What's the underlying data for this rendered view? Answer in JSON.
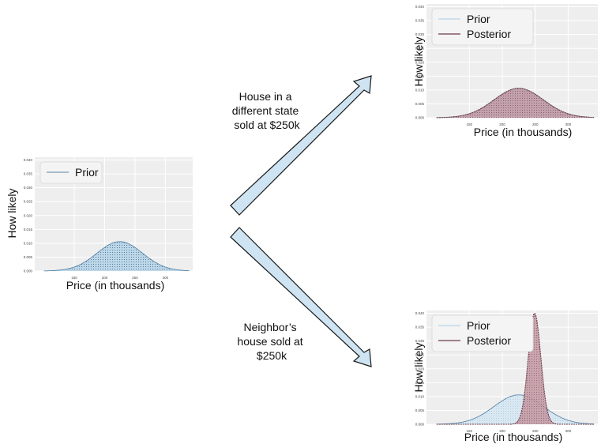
{
  "arrow_labels": {
    "top": [
      "House in a",
      "different state",
      "sold at $250k"
    ],
    "bottom": [
      "Neighbor’s",
      "house sold at",
      "$250k"
    ]
  },
  "colors": {
    "prior_fill": "#b9d6e8",
    "prior_line": "#5b86a8",
    "prior_dots": "#3b5f86",
    "posterior_fill": "#c49aa4",
    "posterior_line": "#6e3b47",
    "arrow_fill": "#cfe4f2",
    "arrow_stroke": "#1a1a1a",
    "plot_bg": "#eeeeee",
    "grid": "#ffffff"
  },
  "chart_data": [
    {
      "id": "prior-only",
      "type": "area",
      "xlabel": "Price (in thousands)",
      "ylabel": "How likely",
      "xticks": [
        150,
        200,
        250,
        300
      ],
      "yticks": [
        "0.000",
        "0.005",
        "0.010",
        "0.015",
        "0.020",
        "0.025",
        "0.030",
        "0.035",
        "0.040"
      ],
      "xlim": [
        85,
        345
      ],
      "ylim": [
        0,
        0.041
      ],
      "legend": {
        "placement": "top-left",
        "entries": [
          "Prior"
        ]
      },
      "series": [
        {
          "name": "Prior",
          "distribution": "normal",
          "mean": 225,
          "sd": 37.5,
          "peak": 0.0106
        }
      ]
    },
    {
      "id": "different-state",
      "type": "area",
      "xlabel": "Price (in thousands)",
      "ylabel": "How likely",
      "xticks": [
        150,
        200,
        250,
        300
      ],
      "yticks": [
        "0.000",
        "0.005",
        "0.010",
        "0.015",
        "0.020",
        "0.025",
        "0.030",
        "0.035",
        "0.040"
      ],
      "xlim": [
        85,
        345
      ],
      "ylim": [
        0,
        0.041
      ],
      "legend": {
        "placement": "top-left",
        "entries": [
          "Prior",
          "Posterior"
        ]
      },
      "series": [
        {
          "name": "Prior",
          "distribution": "normal",
          "mean": 225,
          "sd": 37.5,
          "peak": 0.0106
        },
        {
          "name": "Posterior",
          "distribution": "normal",
          "mean": 225,
          "sd": 37.5,
          "peak": 0.0106
        }
      ]
    },
    {
      "id": "neighbor",
      "type": "area",
      "xlabel": "Price (in thousands)",
      "ylabel": "How likely",
      "xticks": [
        150,
        200,
        250,
        300
      ],
      "yticks": [
        "0.000",
        "0.005",
        "0.010",
        "0.015",
        "0.020",
        "0.025",
        "0.030",
        "0.035",
        "0.040"
      ],
      "xlim": [
        85,
        345
      ],
      "ylim": [
        0,
        0.041
      ],
      "legend": {
        "placement": "top-left",
        "entries": [
          "Prior",
          "Posterior"
        ]
      },
      "series": [
        {
          "name": "Prior",
          "distribution": "normal",
          "mean": 225,
          "sd": 37.5,
          "peak": 0.0106
        },
        {
          "name": "Posterior",
          "distribution": "normal",
          "mean": 249,
          "sd": 9.5,
          "peak": 0.04
        }
      ]
    }
  ]
}
